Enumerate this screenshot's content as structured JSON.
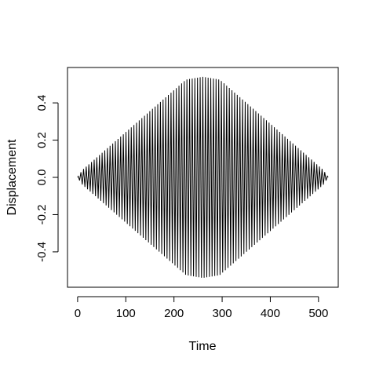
{
  "chart_data": {
    "type": "line",
    "title": "",
    "xlabel": "Time",
    "ylabel": "Displacement",
    "xlim": [
      -21,
      541
    ],
    "ylim": [
      -0.59,
      0.59
    ],
    "x_ticks": [
      0,
      100,
      200,
      300,
      400,
      500
    ],
    "x_tick_labels": [
      "0",
      "100",
      "200",
      "300",
      "400",
      "500"
    ],
    "y_ticks": [
      -0.4,
      -0.2,
      0.0,
      0.2,
      0.4
    ],
    "y_tick_labels": [
      "-0.4",
      "-0.2",
      "0.0",
      "0.2",
      "0.4"
    ],
    "grid": false,
    "legend": "none",
    "series": [
      {
        "description": "oscillating signal with envelope rising linearly, flat peak, then falling",
        "x_start": 0,
        "x_end": 520,
        "period": 5.5,
        "peak_amplitude": 0.54,
        "envelope": [
          [
            0,
            0.0
          ],
          [
            10,
            0.04
          ],
          [
            225,
            0.525
          ],
          [
            260,
            0.54
          ],
          [
            295,
            0.525
          ],
          [
            510,
            0.04
          ],
          [
            520,
            0.0
          ]
        ],
        "color": "#000000"
      }
    ]
  }
}
